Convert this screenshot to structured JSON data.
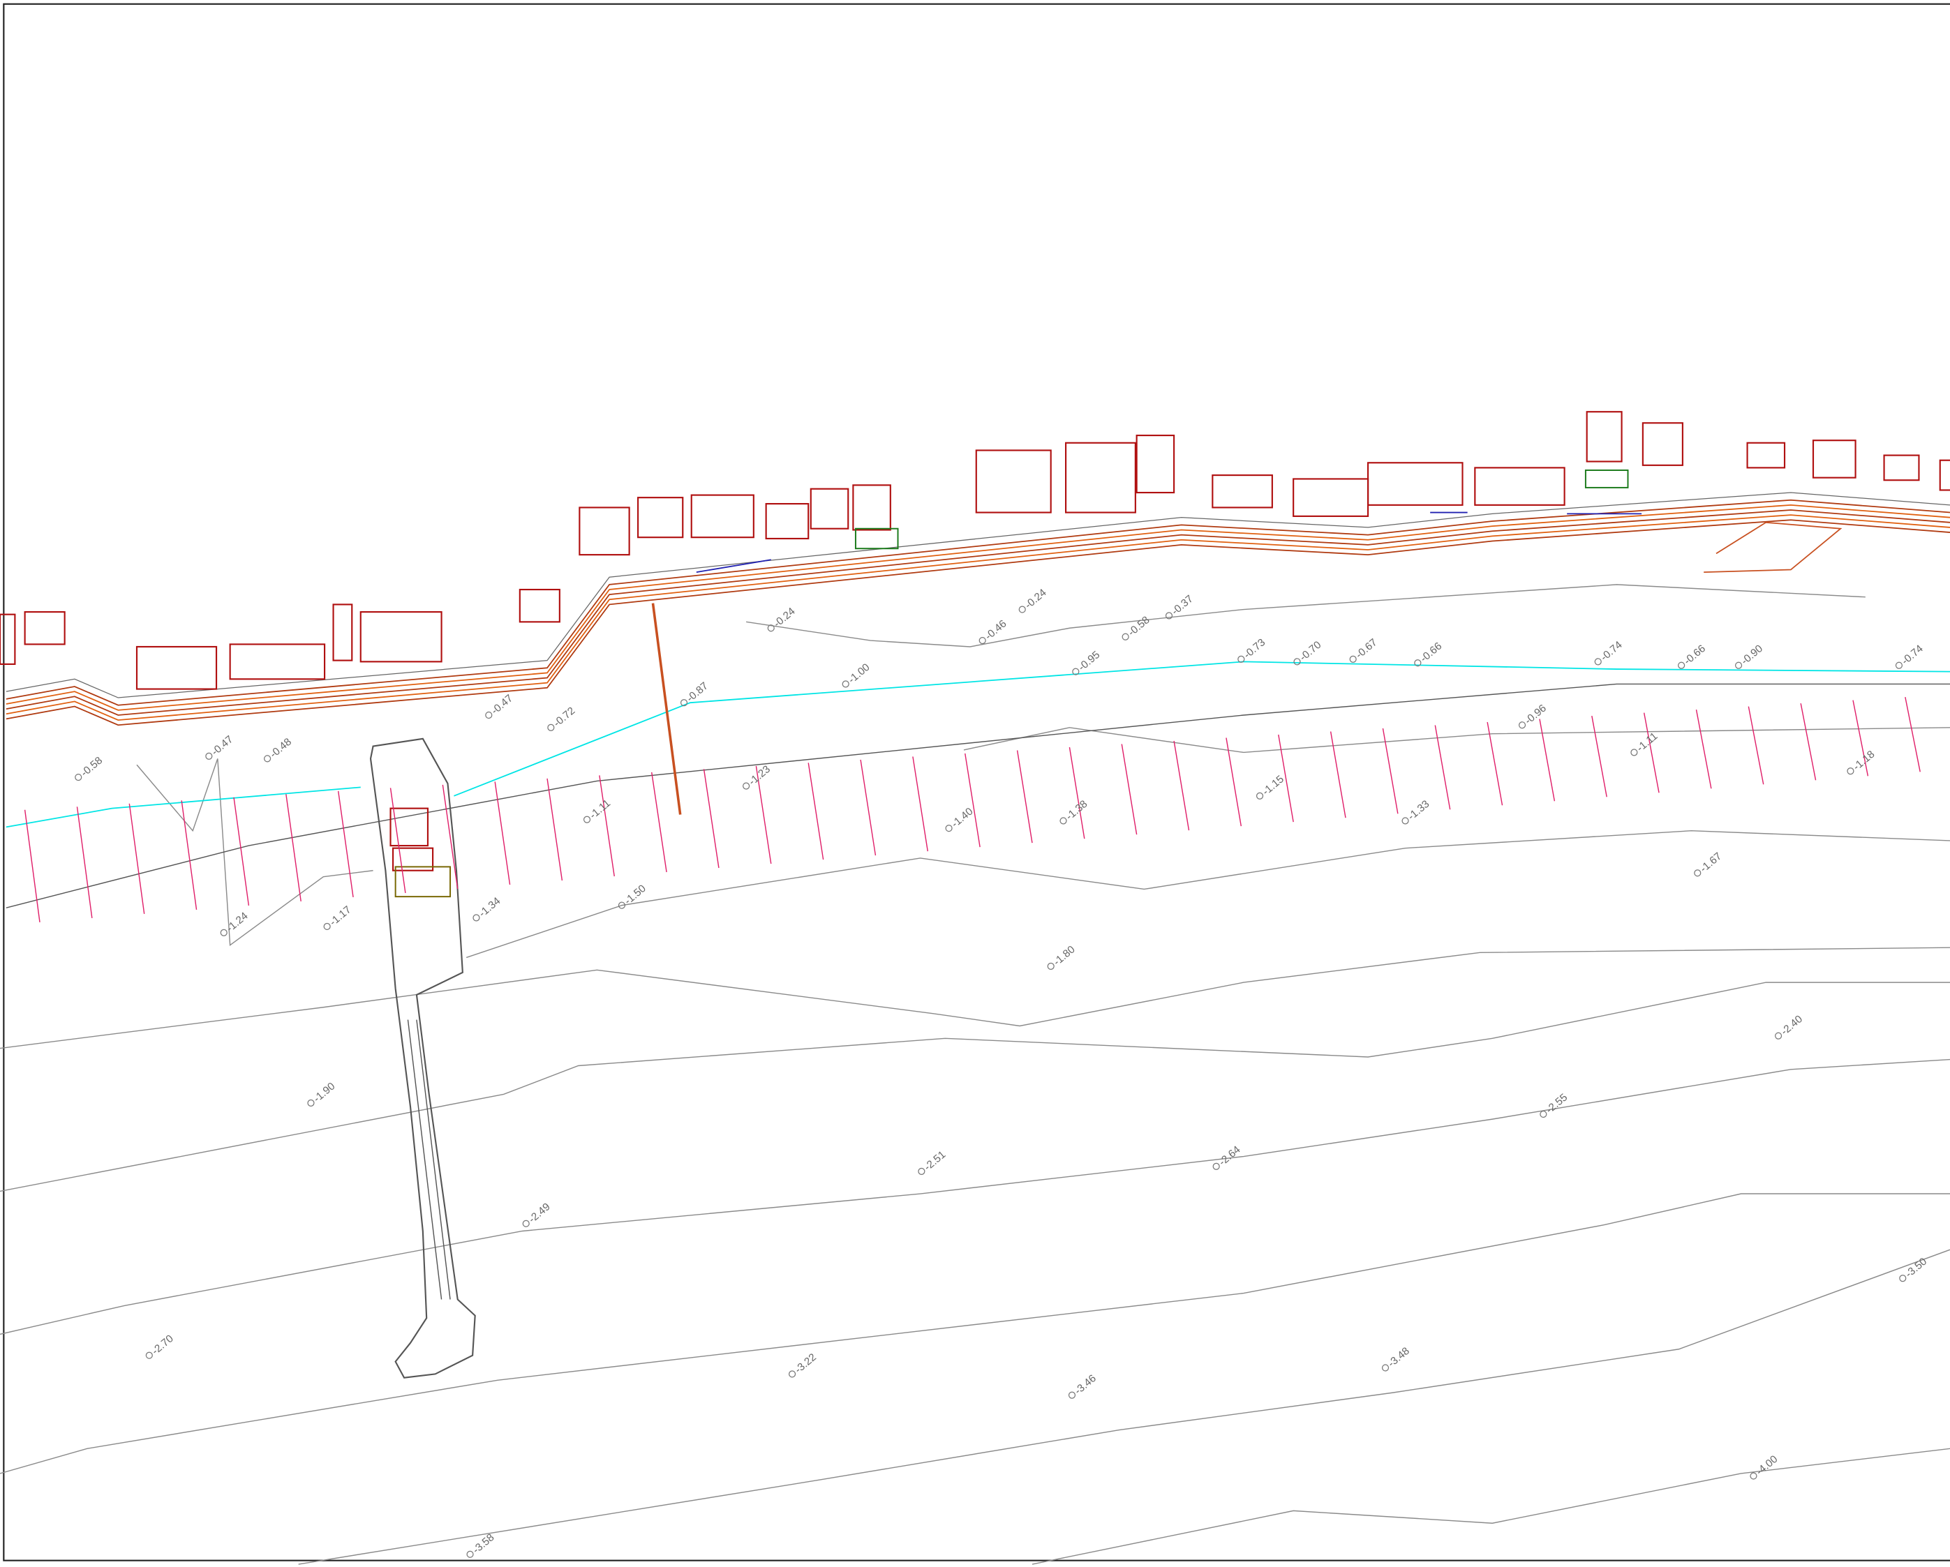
{
  "elevation_labels": [
    "-1.24",
    "-1.17",
    "-1.34",
    "-1.50",
    "-1.80",
    "-1.90",
    "-2.70",
    "-2.49",
    "-2.51",
    "-2.64",
    "-3.22",
    "-3.46",
    "-3.48",
    "-3.58",
    "-4.00",
    "-3.50",
    "-2.40",
    "-2.55",
    "-1.67",
    "-1.18",
    "-1.33",
    "-1.38",
    "-1.40",
    "-1.15",
    "-1.11",
    "-0.96",
    "-1.23",
    "-1.11",
    "-0.95",
    "-0.87",
    "-0.74",
    "-0.90",
    "-0.74",
    "-0.73",
    "-0.70",
    "-0.67",
    "-0.66",
    "-0.66",
    "-0.72",
    "-0.47",
    "-0.48",
    "-0.47",
    "-0.58",
    "-0.24",
    "-0.46",
    "-0.24",
    "-0.58",
    "-0.37",
    "-1.00"
  ]
}
